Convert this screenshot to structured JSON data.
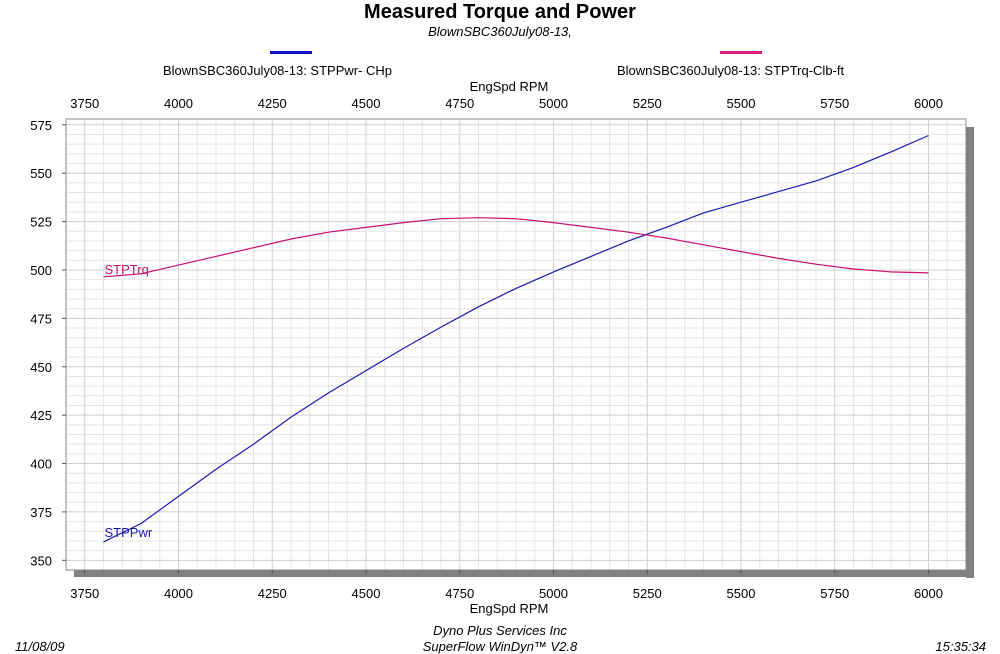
{
  "chart_data": {
    "type": "line",
    "title": "Measured Torque and Power",
    "subtitle": "BlownSBC360July08-13,",
    "xlabel_top": "EngSpd  RPM",
    "xlabel": "EngSpd  RPM",
    "x_ticks": [
      3750,
      4000,
      4250,
      4500,
      4750,
      5000,
      5250,
      5500,
      5750,
      6000
    ],
    "y_ticks": [
      350,
      375,
      400,
      425,
      450,
      475,
      500,
      525,
      550,
      575
    ],
    "xlim": [
      3700,
      6100
    ],
    "ylim": [
      345,
      578
    ],
    "grid": true,
    "legend_position": "top",
    "series": [
      {
        "name": "BlownSBC360July08-13: STPPwr- CHp",
        "label": "STPPwr",
        "color": "#1a1ab4",
        "legend_color": "#1010c8",
        "x": [
          3800,
          3900,
          4000,
          4100,
          4200,
          4300,
          4400,
          4500,
          4600,
          4700,
          4800,
          4900,
          5000,
          5100,
          5200,
          5300,
          5400,
          5500,
          5600,
          5700,
          5800,
          5900,
          6000
        ],
        "values": [
          359.5,
          369,
          383,
          397,
          410,
          424,
          436.5,
          448,
          459.5,
          470.5,
          481,
          490.5,
          499,
          507,
          515,
          522,
          529.5,
          535,
          540.5,
          546,
          553,
          561,
          569.5
        ]
      },
      {
        "name": "BlownSBC360July08-13: STPTrq-Clb-ft",
        "label": "STPTrq",
        "color": "#c8106e",
        "legend_color": "#d81b78",
        "x": [
          3800,
          3900,
          4000,
          4100,
          4200,
          4300,
          4400,
          4500,
          4600,
          4700,
          4800,
          4900,
          5000,
          5100,
          5200,
          5300,
          5400,
          5500,
          5600,
          5700,
          5800,
          5900,
          6000
        ],
        "values": [
          496.5,
          498,
          502.5,
          507,
          511.5,
          516,
          519.5,
          522,
          524.5,
          526.5,
          527,
          526.5,
          524.5,
          522,
          519.5,
          516.5,
          513,
          509.5,
          506,
          503,
          500.5,
          499,
          498.5
        ]
      }
    ]
  },
  "footer": {
    "date": "11/08/09",
    "company": "Dyno Plus Services Inc",
    "software": "SuperFlow WinDyn™ V2.8",
    "time": "15:35:34"
  }
}
